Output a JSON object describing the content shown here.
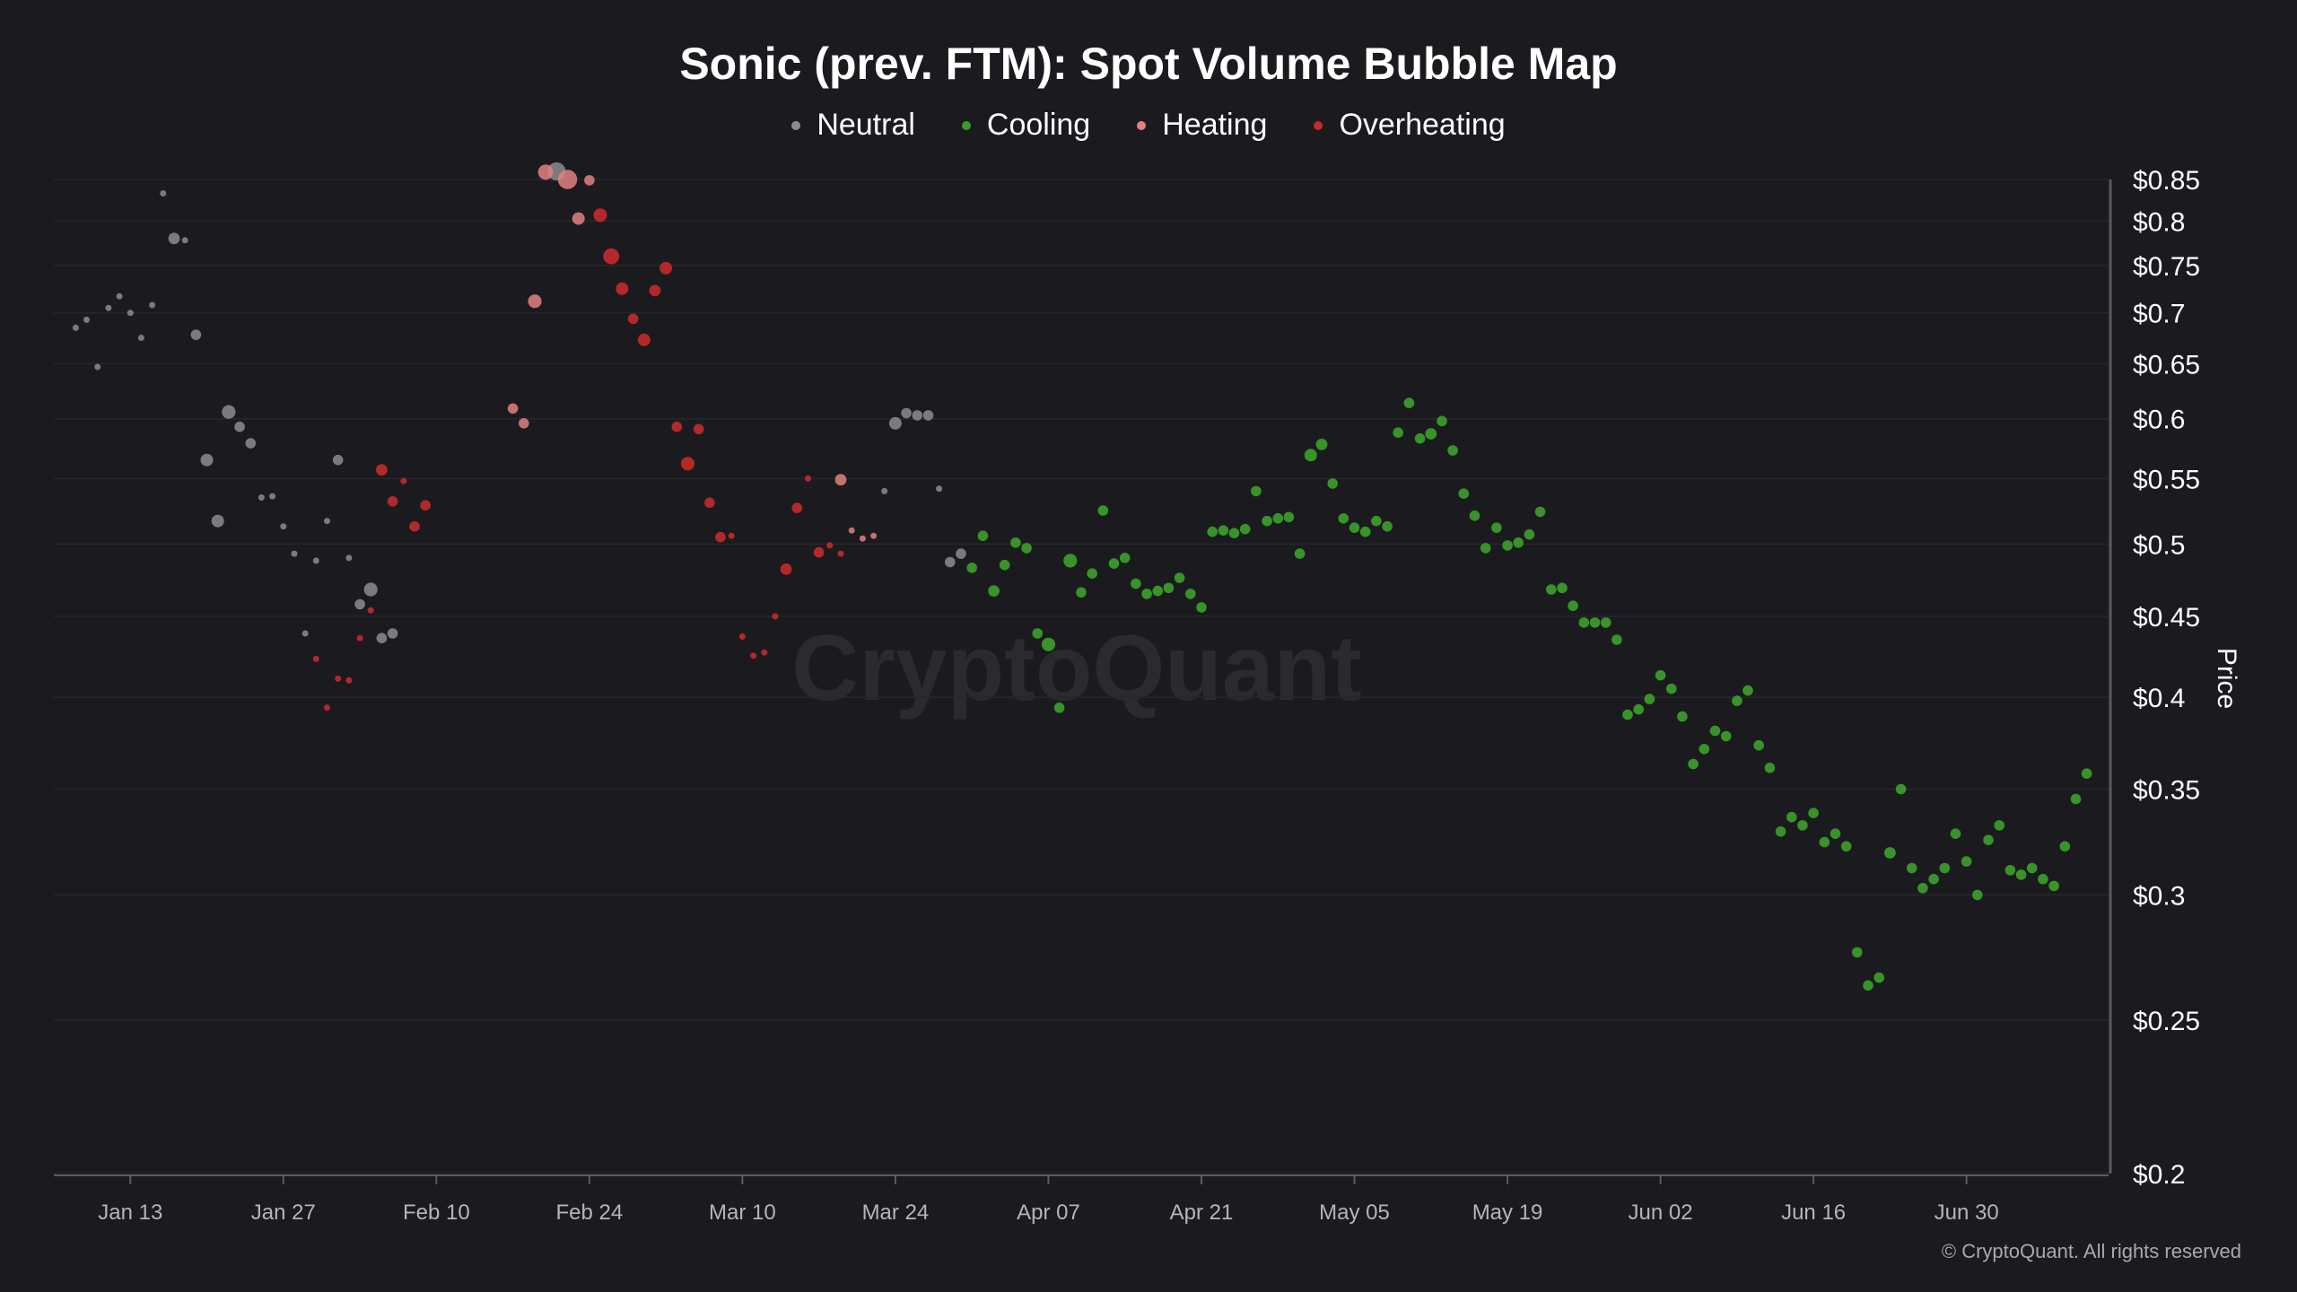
{
  "title": "Sonic (prev. FTM): Spot Volume Bubble Map",
  "copyright": "© CryptoQuant. All rights reserved",
  "watermark": "CryptoQuant",
  "legend": [
    {
      "label": "Neutral",
      "color": "#8b8b92"
    },
    {
      "label": "Cooling",
      "color": "#3a9a2a"
    },
    {
      "label": "Heating",
      "color": "#e08080"
    },
    {
      "label": "Overheating",
      "color": "#c42a2a"
    }
  ],
  "chart_data": {
    "type": "scatter",
    "title": "Sonic (prev. FTM): Spot Volume Bubble Map",
    "ylabel": "Price",
    "yscale": "log",
    "ylim": [
      0.2,
      0.85
    ],
    "xlim": [
      "2025-01-06",
      "2025-07-13"
    ],
    "grid": true,
    "legend_position": "top-center",
    "x_ticks": [
      {
        "date": "2025-01-13",
        "label": "Jan 13"
      },
      {
        "date": "2025-01-27",
        "label": "Jan 27"
      },
      {
        "date": "2025-02-10",
        "label": "Feb 10"
      },
      {
        "date": "2025-02-24",
        "label": "Feb 24"
      },
      {
        "date": "2025-03-10",
        "label": "Mar 10"
      },
      {
        "date": "2025-03-24",
        "label": "Mar 24"
      },
      {
        "date": "2025-04-07",
        "label": "Apr 07"
      },
      {
        "date": "2025-04-21",
        "label": "Apr 21"
      },
      {
        "date": "2025-05-05",
        "label": "May 05"
      },
      {
        "date": "2025-05-19",
        "label": "May 19"
      },
      {
        "date": "2025-06-02",
        "label": "Jun 02"
      },
      {
        "date": "2025-06-16",
        "label": "Jun 16"
      },
      {
        "date": "2025-06-30",
        "label": "Jun 30"
      }
    ],
    "y_ticks": [
      {
        "value": 0.85,
        "label": "$0.85"
      },
      {
        "value": 0.8,
        "label": "$0.8"
      },
      {
        "value": 0.75,
        "label": "$0.75"
      },
      {
        "value": 0.7,
        "label": "$0.7"
      },
      {
        "value": 0.65,
        "label": "$0.65"
      },
      {
        "value": 0.6,
        "label": "$0.6"
      },
      {
        "value": 0.55,
        "label": "$0.55"
      },
      {
        "value": 0.5,
        "label": "$0.5"
      },
      {
        "value": 0.45,
        "label": "$0.45"
      },
      {
        "value": 0.4,
        "label": "$0.4"
      },
      {
        "value": 0.35,
        "label": "$0.35"
      },
      {
        "value": 0.3,
        "label": "$0.3"
      },
      {
        "value": 0.25,
        "label": "$0.25"
      },
      {
        "value": 0.2,
        "label": "$0.2"
      }
    ],
    "series": [
      {
        "name": "Neutral",
        "color": "#8b8b92",
        "points": [
          [
            "2025-01-08",
            0.685,
            1
          ],
          [
            "2025-01-09",
            0.693,
            1
          ],
          [
            "2025-01-10",
            0.647,
            1
          ],
          [
            "2025-01-11",
            0.705,
            1
          ],
          [
            "2025-01-12",
            0.717,
            1
          ],
          [
            "2025-01-13",
            0.7,
            1
          ],
          [
            "2025-01-14",
            0.675,
            1
          ],
          [
            "2025-01-15",
            0.708,
            1
          ],
          [
            "2025-01-16",
            0.833,
            1
          ],
          [
            "2025-01-17",
            0.78,
            2
          ],
          [
            "2025-01-18",
            0.778,
            1
          ],
          [
            "2025-01-19",
            0.678,
            1.5
          ],
          [
            "2025-01-20",
            0.565,
            2.5
          ],
          [
            "2025-01-21",
            0.517,
            2.5
          ],
          [
            "2025-01-22",
            0.606,
            3
          ],
          [
            "2025-01-23",
            0.593,
            1.5
          ],
          [
            "2025-01-24",
            0.579,
            1.5
          ],
          [
            "2025-01-25",
            0.535,
            1
          ],
          [
            "2025-01-26",
            0.536,
            1
          ],
          [
            "2025-01-27",
            0.513,
            1
          ],
          [
            "2025-01-28",
            0.493,
            1
          ],
          [
            "2025-01-29",
            0.439,
            1
          ],
          [
            "2025-01-30",
            0.488,
            1
          ],
          [
            "2025-01-31",
            0.517,
            1
          ],
          [
            "2025-02-01",
            0.565,
            1.5
          ],
          [
            "2025-02-02",
            0.49,
            1
          ],
          [
            "2025-02-03",
            0.458,
            1.5
          ],
          [
            "2025-02-04",
            0.468,
            3
          ],
          [
            "2025-02-05",
            0.436,
            1.5
          ],
          [
            "2025-02-06",
            0.439,
            1.5
          ],
          [
            "2025-03-23",
            0.54,
            1
          ],
          [
            "2025-03-24",
            0.596,
            2.5
          ],
          [
            "2025-03-25",
            0.605,
            1.5
          ],
          [
            "2025-03-26",
            0.603,
            1.5
          ],
          [
            "2025-03-27",
            0.603,
            1.5
          ],
          [
            "2025-03-28",
            0.542,
            1
          ],
          [
            "2025-03-29",
            0.487,
            1.5
          ],
          [
            "2025-03-30",
            0.493,
            1.5
          ],
          [
            "2025-02-21",
            0.86,
            6
          ]
        ]
      },
      {
        "name": "Cooling",
        "color": "#3a9a2a",
        "points": [
          [
            "2025-03-31",
            0.483,
            1.5
          ],
          [
            "2025-04-01",
            0.506,
            1.5
          ],
          [
            "2025-04-02",
            0.467,
            2
          ],
          [
            "2025-04-03",
            0.485,
            1.5
          ],
          [
            "2025-04-04",
            0.501,
            1.5
          ],
          [
            "2025-04-05",
            0.497,
            1.5
          ],
          [
            "2025-04-06",
            0.439,
            1.5
          ],
          [
            "2025-04-07",
            0.432,
            3
          ],
          [
            "2025-04-08",
            0.394,
            1.5
          ],
          [
            "2025-04-09",
            0.488,
            3
          ],
          [
            "2025-04-10",
            0.466,
            1.5
          ],
          [
            "2025-04-11",
            0.479,
            1.5
          ],
          [
            "2025-04-12",
            0.525,
            1.5
          ],
          [
            "2025-04-13",
            0.486,
            1.5
          ],
          [
            "2025-04-14",
            0.49,
            1.5
          ],
          [
            "2025-04-15",
            0.472,
            1.5
          ],
          [
            "2025-04-16",
            0.465,
            1.5
          ],
          [
            "2025-04-17",
            0.467,
            1.5
          ],
          [
            "2025-04-18",
            0.469,
            1.5
          ],
          [
            "2025-04-19",
            0.476,
            1.5
          ],
          [
            "2025-04-20",
            0.465,
            1.5
          ],
          [
            "2025-04-21",
            0.456,
            1.5
          ],
          [
            "2025-04-22",
            0.509,
            1.5
          ],
          [
            "2025-04-23",
            0.51,
            1.5
          ],
          [
            "2025-04-24",
            0.508,
            1.5
          ],
          [
            "2025-04-25",
            0.511,
            1.5
          ],
          [
            "2025-04-26",
            0.54,
            1.5
          ],
          [
            "2025-04-27",
            0.517,
            1.5
          ],
          [
            "2025-04-28",
            0.519,
            1.5
          ],
          [
            "2025-04-29",
            0.52,
            1.5
          ],
          [
            "2025-04-30",
            0.493,
            1.5
          ],
          [
            "2025-05-01",
            0.569,
            2.5
          ],
          [
            "2025-05-02",
            0.578,
            2
          ],
          [
            "2025-05-03",
            0.546,
            1.5
          ],
          [
            "2025-05-04",
            0.519,
            1.5
          ],
          [
            "2025-05-05",
            0.512,
            1.5
          ],
          [
            "2025-05-06",
            0.509,
            1.5
          ],
          [
            "2025-05-07",
            0.517,
            1.5
          ],
          [
            "2025-05-08",
            0.513,
            1.5
          ],
          [
            "2025-05-09",
            0.588,
            1.5
          ],
          [
            "2025-05-10",
            0.614,
            1.5
          ],
          [
            "2025-05-11",
            0.583,
            1.5
          ],
          [
            "2025-05-12",
            0.587,
            2
          ],
          [
            "2025-05-13",
            0.598,
            1.5
          ],
          [
            "2025-05-14",
            0.573,
            1.5
          ],
          [
            "2025-05-15",
            0.538,
            1.5
          ],
          [
            "2025-05-16",
            0.521,
            1.5
          ],
          [
            "2025-05-17",
            0.497,
            1.5
          ],
          [
            "2025-05-18",
            0.512,
            1.5
          ],
          [
            "2025-05-19",
            0.499,
            1.5
          ],
          [
            "2025-05-20",
            0.501,
            1.5
          ],
          [
            "2025-05-21",
            0.507,
            1.5
          ],
          [
            "2025-05-22",
            0.524,
            1.5
          ],
          [
            "2025-05-23",
            0.468,
            1.5
          ],
          [
            "2025-05-24",
            0.469,
            1.5
          ],
          [
            "2025-05-25",
            0.457,
            1.5
          ],
          [
            "2025-05-26",
            0.446,
            1.5
          ],
          [
            "2025-05-27",
            0.446,
            1.5
          ],
          [
            "2025-05-28",
            0.446,
            1.5
          ],
          [
            "2025-05-29",
            0.435,
            1.5
          ],
          [
            "2025-05-30",
            0.39,
            1.5
          ],
          [
            "2025-05-31",
            0.393,
            1.5
          ],
          [
            "2025-06-01",
            0.399,
            1.5
          ],
          [
            "2025-06-02",
            0.413,
            1.5
          ],
          [
            "2025-06-03",
            0.405,
            1.5
          ],
          [
            "2025-06-04",
            0.389,
            1.5
          ],
          [
            "2025-06-05",
            0.363,
            1.5
          ],
          [
            "2025-06-06",
            0.371,
            1.5
          ],
          [
            "2025-06-07",
            0.381,
            1.5
          ],
          [
            "2025-06-08",
            0.378,
            1.5
          ],
          [
            "2025-06-09",
            0.398,
            1.5
          ],
          [
            "2025-06-10",
            0.404,
            1.5
          ],
          [
            "2025-06-11",
            0.373,
            1.5
          ],
          [
            "2025-06-12",
            0.361,
            1.5
          ],
          [
            "2025-06-13",
            0.329,
            1.5
          ],
          [
            "2025-06-14",
            0.336,
            1.5
          ],
          [
            "2025-06-15",
            0.332,
            1.5
          ],
          [
            "2025-06-16",
            0.338,
            1.5
          ],
          [
            "2025-06-17",
            0.324,
            1.5
          ],
          [
            "2025-06-18",
            0.328,
            1.5
          ],
          [
            "2025-06-19",
            0.322,
            1.5
          ],
          [
            "2025-06-20",
            0.276,
            1.5
          ],
          [
            "2025-06-21",
            0.263,
            1.5
          ],
          [
            "2025-06-22",
            0.266,
            1.5
          ],
          [
            "2025-06-23",
            0.319,
            2
          ],
          [
            "2025-06-24",
            0.35,
            1.5
          ],
          [
            "2025-06-25",
            0.312,
            1.5
          ],
          [
            "2025-06-26",
            0.303,
            1.5
          ],
          [
            "2025-06-27",
            0.307,
            1.5
          ],
          [
            "2025-06-28",
            0.312,
            1.5
          ],
          [
            "2025-06-29",
            0.328,
            1.5
          ],
          [
            "2025-06-30",
            0.315,
            1.5
          ],
          [
            "2025-07-01",
            0.3,
            1.5
          ],
          [
            "2025-07-02",
            0.325,
            1.5
          ],
          [
            "2025-07-03",
            0.332,
            1.5
          ],
          [
            "2025-07-04",
            0.311,
            1.5
          ],
          [
            "2025-07-05",
            0.309,
            1.5
          ],
          [
            "2025-07-06",
            0.312,
            1.5
          ],
          [
            "2025-07-07",
            0.307,
            1.5
          ],
          [
            "2025-07-08",
            0.304,
            1.5
          ],
          [
            "2025-07-09",
            0.322,
            1.5
          ],
          [
            "2025-07-10",
            0.345,
            1.5
          ],
          [
            "2025-07-11",
            0.358,
            1.5
          ]
        ]
      },
      {
        "name": "Heating",
        "color": "#e08080",
        "points": [
          [
            "2025-02-17",
            0.609,
            1.5
          ],
          [
            "2025-02-18",
            0.596,
            1.5
          ],
          [
            "2025-02-19",
            0.712,
            3
          ],
          [
            "2025-02-20",
            0.859,
            4
          ],
          [
            "2025-02-22",
            0.85,
            7
          ],
          [
            "2025-02-23",
            0.803,
            2.5
          ],
          [
            "2025-02-24",
            0.849,
            1.5
          ],
          [
            "2025-03-19",
            0.549,
            2
          ],
          [
            "2025-03-20",
            0.51,
            1
          ],
          [
            "2025-03-21",
            0.504,
            1
          ],
          [
            "2025-03-22",
            0.506,
            1
          ]
        ]
      },
      {
        "name": "Overheating",
        "color": "#c42a2a",
        "points": [
          [
            "2025-01-30",
            0.423,
            1
          ],
          [
            "2025-01-31",
            0.394,
            1
          ],
          [
            "2025-02-01",
            0.411,
            1
          ],
          [
            "2025-02-02",
            0.41,
            1
          ],
          [
            "2025-02-03",
            0.436,
            1
          ],
          [
            "2025-02-04",
            0.454,
            1
          ],
          [
            "2025-02-05",
            0.557,
            2
          ],
          [
            "2025-02-06",
            0.532,
            1.5
          ],
          [
            "2025-02-07",
            0.548,
            1
          ],
          [
            "2025-02-08",
            0.513,
            1.5
          ],
          [
            "2025-02-09",
            0.529,
            1.5
          ],
          [
            "2025-02-25",
            0.807,
            3
          ],
          [
            "2025-02-26",
            0.76,
            4.5
          ],
          [
            "2025-02-27",
            0.725,
            2.5
          ],
          [
            "2025-02-28",
            0.694,
            1.5
          ],
          [
            "2025-03-01",
            0.673,
            2.5
          ],
          [
            "2025-03-02",
            0.723,
            2
          ],
          [
            "2025-03-03",
            0.747,
            2.5
          ],
          [
            "2025-03-04",
            0.593,
            1.5
          ],
          [
            "2025-03-05",
            0.562,
            3
          ],
          [
            "2025-03-06",
            0.591,
            1.5
          ],
          [
            "2025-03-07",
            0.531,
            1.5
          ],
          [
            "2025-03-08",
            0.505,
            1.5
          ],
          [
            "2025-03-09",
            0.506,
            1
          ],
          [
            "2025-03-10",
            0.437,
            1
          ],
          [
            "2025-03-11",
            0.425,
            1
          ],
          [
            "2025-03-12",
            0.427,
            1
          ],
          [
            "2025-03-13",
            0.45,
            1
          ],
          [
            "2025-03-14",
            0.482,
            2
          ],
          [
            "2025-03-15",
            0.527,
            1.5
          ],
          [
            "2025-03-16",
            0.55,
            1
          ],
          [
            "2025-03-17",
            0.494,
            1.5
          ],
          [
            "2025-03-18",
            0.499,
            1
          ],
          [
            "2025-03-19",
            0.493,
            1
          ]
        ]
      }
    ]
  }
}
